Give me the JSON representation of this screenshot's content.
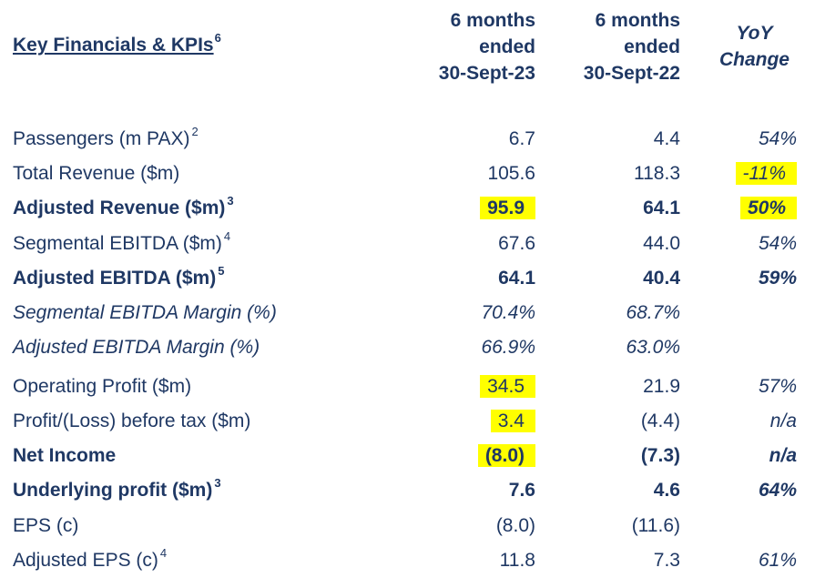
{
  "title": "Key Financials & KPIs",
  "title_sup": "6",
  "headers": {
    "col1": [
      "6 months",
      "ended",
      "30-Sept-23"
    ],
    "col2": [
      "6 months",
      "ended",
      "30-Sept-22"
    ],
    "col3": [
      "YoY",
      "Change"
    ]
  },
  "highlight_color": "#ffff00",
  "text_color": "#1f3864",
  "rows": [
    {
      "label": "Passengers (m PAX)",
      "sup": "2",
      "v1": "6.7",
      "v2": "4.4",
      "v3": "54%"
    },
    {
      "label": "Total Revenue ($m)",
      "sup": "",
      "v1": "105.6",
      "v2": "118.3",
      "v3": "-11%"
    },
    {
      "label": "Adjusted Revenue ($m)",
      "sup": "3",
      "v1": "95.9",
      "v2": "64.1",
      "v3": "50%"
    },
    {
      "label": "Segmental EBITDA ($m)",
      "sup": "4",
      "v1": "67.6",
      "v2": "44.0",
      "v3": "54%"
    },
    {
      "label": "Adjusted EBITDA ($m)",
      "sup": "5",
      "v1": "64.1",
      "v2": "40.4",
      "v3": "59%"
    },
    {
      "label": "Segmental EBITDA Margin (%)",
      "sup": "",
      "v1": "70.4%",
      "v2": "68.7%",
      "v3": ""
    },
    {
      "label": "Adjusted EBITDA Margin (%)",
      "sup": "",
      "v1": "66.9%",
      "v2": "63.0%",
      "v3": ""
    },
    {
      "label": "Operating Profit ($m)",
      "sup": "",
      "v1": "34.5",
      "v2": "21.9",
      "v3": "57%"
    },
    {
      "label": "Profit/(Loss) before tax ($m)",
      "sup": "",
      "v1": "3.4",
      "v2": "(4.4)",
      "v3": "n/a"
    },
    {
      "label": "Net Income",
      "sup": "",
      "v1": "(8.0)",
      "v2": "(7.3)",
      "v3": "n/a"
    },
    {
      "label": "Underlying profit ($m)",
      "sup": "3",
      "v1": "7.6",
      "v2": "4.6",
      "v3": "64%"
    },
    {
      "label": "EPS (c)",
      "sup": "",
      "v1": "(8.0)",
      "v2": "(11.6)",
      "v3": ""
    },
    {
      "label": "Adjusted EPS (c)",
      "sup": "4",
      "v1": "11.8",
      "v2": "7.3",
      "v3": "61%"
    }
  ]
}
